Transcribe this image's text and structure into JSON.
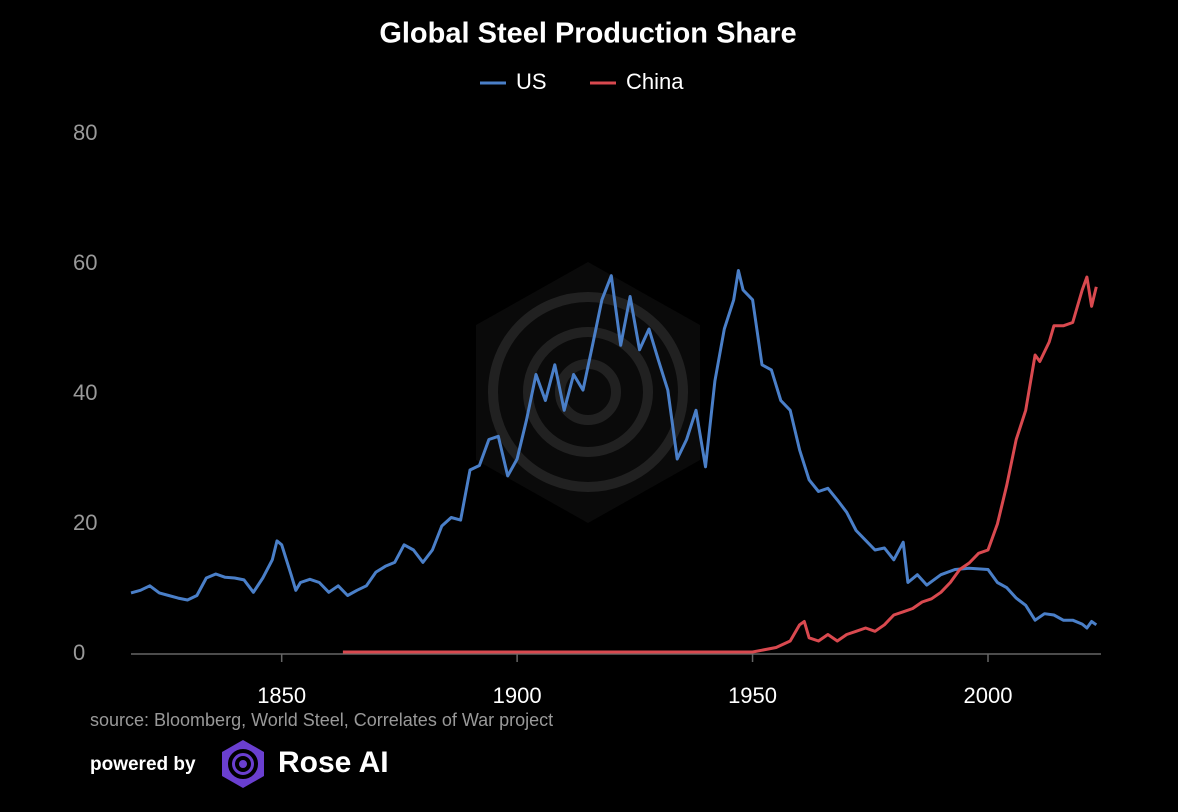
{
  "chart_data": {
    "type": "line",
    "title": "Global Steel Production Share",
    "xlim": [
      1818,
      2024
    ],
    "xticks": [
      1850,
      1900,
      1950,
      2000
    ],
    "ylim": [
      0,
      80
    ],
    "yticks": [
      0,
      20,
      40,
      60,
      80
    ],
    "legend": "top",
    "series": [
      {
        "name": "US",
        "color": "#4a7fc8",
        "x": [
          1818,
          1820,
          1822,
          1824,
          1826,
          1828,
          1830,
          1832,
          1834,
          1836,
          1838,
          1840,
          1842,
          1844,
          1846,
          1848,
          1849,
          1850,
          1851,
          1852,
          1853,
          1854,
          1856,
          1858,
          1860,
          1862,
          1864,
          1866,
          1868,
          1870,
          1872,
          1874,
          1876,
          1878,
          1880,
          1882,
          1884,
          1886,
          1888,
          1890,
          1892,
          1894,
          1896,
          1898,
          1900,
          1902,
          1904,
          1906,
          1908,
          1910,
          1912,
          1914,
          1916,
          1918,
          1920,
          1922,
          1924,
          1926,
          1928,
          1930,
          1932,
          1934,
          1936,
          1938,
          1940,
          1942,
          1944,
          1946,
          1947,
          1948,
          1950,
          1952,
          1954,
          1956,
          1958,
          1960,
          1962,
          1964,
          1966,
          1968,
          1970,
          1972,
          1974,
          1976,
          1978,
          1980,
          1982,
          1983,
          1985,
          1987,
          1990,
          1993,
          1996,
          2000,
          2002,
          2004,
          2006,
          2008,
          2010,
          2012,
          2014,
          2016,
          2018,
          2020,
          2021,
          2022,
          2023
        ],
        "values": [
          9.4,
          9.8,
          10.5,
          9.4,
          9,
          8.6,
          8.3,
          9,
          11.7,
          12.3,
          11.8,
          11.7,
          11.4,
          9.5,
          11.7,
          14.5,
          17.4,
          16.8,
          14.5,
          12.2,
          9.8,
          11,
          11.5,
          11,
          9.5,
          10.5,
          9,
          9.8,
          10.5,
          12.6,
          13.5,
          14.1,
          16.8,
          16,
          14.1,
          16,
          19.7,
          21,
          20.6,
          28.3,
          29,
          33,
          33.5,
          27.4,
          30,
          36,
          43,
          39,
          44.5,
          37.5,
          43,
          40.6,
          47.5,
          54.5,
          58.2,
          47.5,
          55,
          46.8,
          50,
          45.2,
          40.6,
          30,
          33,
          37.5,
          28.8,
          42,
          50,
          54.5,
          59,
          56,
          54.5,
          44.5,
          43.7,
          39,
          37.5,
          31.4,
          26.8,
          25,
          25.5,
          23.7,
          21.8,
          19,
          17.5,
          16,
          16.3,
          14.5,
          17.2,
          11,
          12.2,
          10.6,
          12.2,
          13,
          13.2,
          13,
          11,
          10.2,
          8.6,
          7.5,
          5.2,
          6.2,
          6,
          5.2,
          5.2,
          4.6,
          4,
          5,
          4.5
        ]
      },
      {
        "name": "China",
        "color": "#d9494f",
        "x": [
          1863,
          1880,
          1900,
          1920,
          1940,
          1950,
          1955,
          1958,
          1960,
          1961,
          1962,
          1964,
          1966,
          1968,
          1970,
          1972,
          1974,
          1976,
          1978,
          1980,
          1982,
          1984,
          1986,
          1988,
          1990,
          1992,
          1994,
          1996,
          1998,
          2000,
          2002,
          2004,
          2006,
          2008,
          2010,
          2011,
          2013,
          2014,
          2016,
          2018,
          2020,
          2021,
          2022,
          2023
        ],
        "values": [
          0.3,
          0.3,
          0.3,
          0.3,
          0.3,
          0.3,
          1,
          2,
          4.5,
          5,
          2.5,
          2,
          3,
          2,
          3,
          3.5,
          4,
          3.5,
          4.5,
          6,
          6.5,
          7,
          8,
          8.5,
          9.5,
          11,
          13,
          14,
          15.5,
          16,
          20,
          26,
          33,
          37.5,
          46,
          45,
          48,
          50.5,
          50.5,
          51,
          56,
          58,
          53.5,
          56.5
        ]
      }
    ]
  },
  "source": "source: Bloomberg, World Steel, Correlates of War project",
  "powered_by": "powered by",
  "brand": "Rose AI"
}
